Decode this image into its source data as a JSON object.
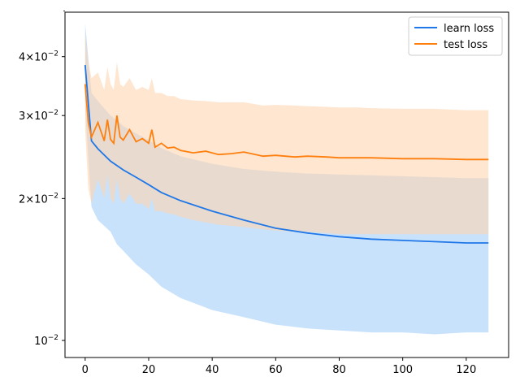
{
  "chart_data": {
    "type": "line",
    "title": "",
    "xlabel": "",
    "ylabel": "",
    "yscale": "log",
    "xlim": [
      -6.35,
      133.35
    ],
    "ylim": [
      0.0092,
      0.0497
    ],
    "grid": false,
    "legend_position": "top-right",
    "x_ticks": [
      0,
      20,
      40,
      60,
      80,
      100,
      120
    ],
    "y_ticks": [
      {
        "value": 0.01,
        "label": "10^-2"
      },
      {
        "value": 0.02,
        "label": "2×10^-2"
      },
      {
        "value": 0.03,
        "label": "3×10^-2"
      },
      {
        "value": 0.04,
        "label": "4×10^-2"
      }
    ],
    "y_tick_labels_display": [
      {
        "value": 0.01,
        "mantissa": "",
        "base": "10",
        "exp": "−2"
      },
      {
        "value": 0.02,
        "mantissa": "2×",
        "base": "10",
        "exp": "−2"
      },
      {
        "value": 0.03,
        "mantissa": "3×",
        "base": "10",
        "exp": "−2"
      },
      {
        "value": 0.04,
        "mantissa": "4×",
        "base": "10",
        "exp": "−2"
      }
    ],
    "y_minor_ticks": [
      0.05
    ],
    "series": [
      {
        "name": "learn loss",
        "color": "#1f77e8",
        "band_color": "#9ccaf8",
        "x": [
          0,
          2,
          4,
          8,
          10,
          12,
          16,
          20,
          24,
          30,
          40,
          50,
          60,
          70,
          80,
          90,
          100,
          110,
          120,
          127
        ],
        "mean": [
          0.0384,
          0.0265,
          0.0255,
          0.024,
          0.0235,
          0.023,
          0.0222,
          0.0214,
          0.0206,
          0.0198,
          0.0188,
          0.018,
          0.0173,
          0.0169,
          0.0166,
          0.0164,
          0.0163,
          0.0162,
          0.0161,
          0.0161
        ],
        "upper": [
          0.047,
          0.0335,
          0.0322,
          0.03,
          0.0293,
          0.0285,
          0.0275,
          0.0266,
          0.0256,
          0.0246,
          0.0237,
          0.0231,
          0.0228,
          0.0226,
          0.0225,
          0.0224,
          0.0223,
          0.0222,
          0.0221,
          0.0221
        ],
        "lower": [
          0.031,
          0.0192,
          0.018,
          0.017,
          0.016,
          0.0155,
          0.0145,
          0.0138,
          0.013,
          0.0123,
          0.0116,
          0.0112,
          0.0108,
          0.0106,
          0.0105,
          0.0104,
          0.0104,
          0.0103,
          0.0104,
          0.0104
        ]
      },
      {
        "name": "test loss",
        "color": "#ff7f0e",
        "band_color": "#fdd6b0",
        "x": [
          0,
          1,
          2,
          4,
          6,
          7,
          8,
          9,
          10,
          11,
          12,
          14,
          16,
          18,
          20,
          21,
          22,
          24,
          26,
          28,
          30,
          34,
          38,
          42,
          46,
          50,
          56,
          60,
          66,
          70,
          76,
          80,
          86,
          90,
          100,
          110,
          120,
          127
        ],
        "mean": [
          0.035,
          0.029,
          0.027,
          0.029,
          0.0265,
          0.0294,
          0.0267,
          0.0262,
          0.03,
          0.027,
          0.0266,
          0.028,
          0.0264,
          0.0268,
          0.0262,
          0.028,
          0.0257,
          0.0262,
          0.0256,
          0.0257,
          0.0253,
          0.025,
          0.0252,
          0.0248,
          0.0249,
          0.0251,
          0.0246,
          0.0247,
          0.0245,
          0.0246,
          0.0245,
          0.0244,
          0.0244,
          0.0244,
          0.0243,
          0.0243,
          0.0242,
          0.0242
        ],
        "upper": [
          0.045,
          0.039,
          0.036,
          0.037,
          0.034,
          0.038,
          0.035,
          0.034,
          0.039,
          0.035,
          0.0345,
          0.036,
          0.034,
          0.0345,
          0.034,
          0.036,
          0.0335,
          0.0335,
          0.033,
          0.033,
          0.0325,
          0.0323,
          0.0322,
          0.032,
          0.032,
          0.032,
          0.0315,
          0.0316,
          0.0315,
          0.0314,
          0.0313,
          0.0312,
          0.0312,
          0.0311,
          0.031,
          0.031,
          0.0308,
          0.0308
        ],
        "lower": [
          0.028,
          0.021,
          0.0195,
          0.022,
          0.02,
          0.0225,
          0.02,
          0.0195,
          0.022,
          0.02,
          0.0195,
          0.0205,
          0.0195,
          0.0195,
          0.019,
          0.02,
          0.0188,
          0.0188,
          0.0186,
          0.0185,
          0.0183,
          0.018,
          0.0178,
          0.0176,
          0.0175,
          0.0174,
          0.0172,
          0.0171,
          0.017,
          0.017,
          0.0169,
          0.0168,
          0.0168,
          0.0168,
          0.0168,
          0.0168,
          0.0168,
          0.0168
        ]
      }
    ]
  }
}
